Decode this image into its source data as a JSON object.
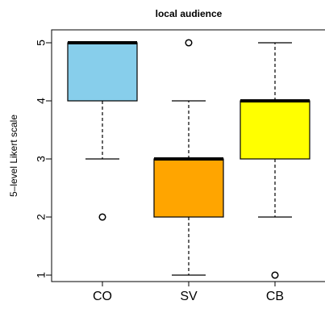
{
  "chart_data": {
    "type": "box",
    "title": "local audience",
    "xlabel": "",
    "ylabel": "5–level Likert scale",
    "ylim": [
      1,
      5
    ],
    "yticks": [
      "1",
      "2",
      "3",
      "4",
      "5"
    ],
    "categories": [
      "CO",
      "SV",
      "CB"
    ],
    "boxes": [
      {
        "name": "CO",
        "whisker_low": 3,
        "q1": 4,
        "median": 5,
        "q3": 5,
        "whisker_high": 5,
        "outliers": [
          2
        ],
        "color": "#87CEEB"
      },
      {
        "name": "SV",
        "whisker_low": 1,
        "q1": 2,
        "median": 3,
        "q3": 3,
        "whisker_high": 4,
        "outliers": [
          5
        ],
        "color": "#FFA500"
      },
      {
        "name": "CB",
        "whisker_low": 2,
        "q1": 3,
        "median": 4,
        "q3": 4,
        "whisker_high": 5,
        "outliers": [
          1
        ],
        "color": "#FFFF00"
      }
    ],
    "grid": false,
    "legend": "none"
  }
}
